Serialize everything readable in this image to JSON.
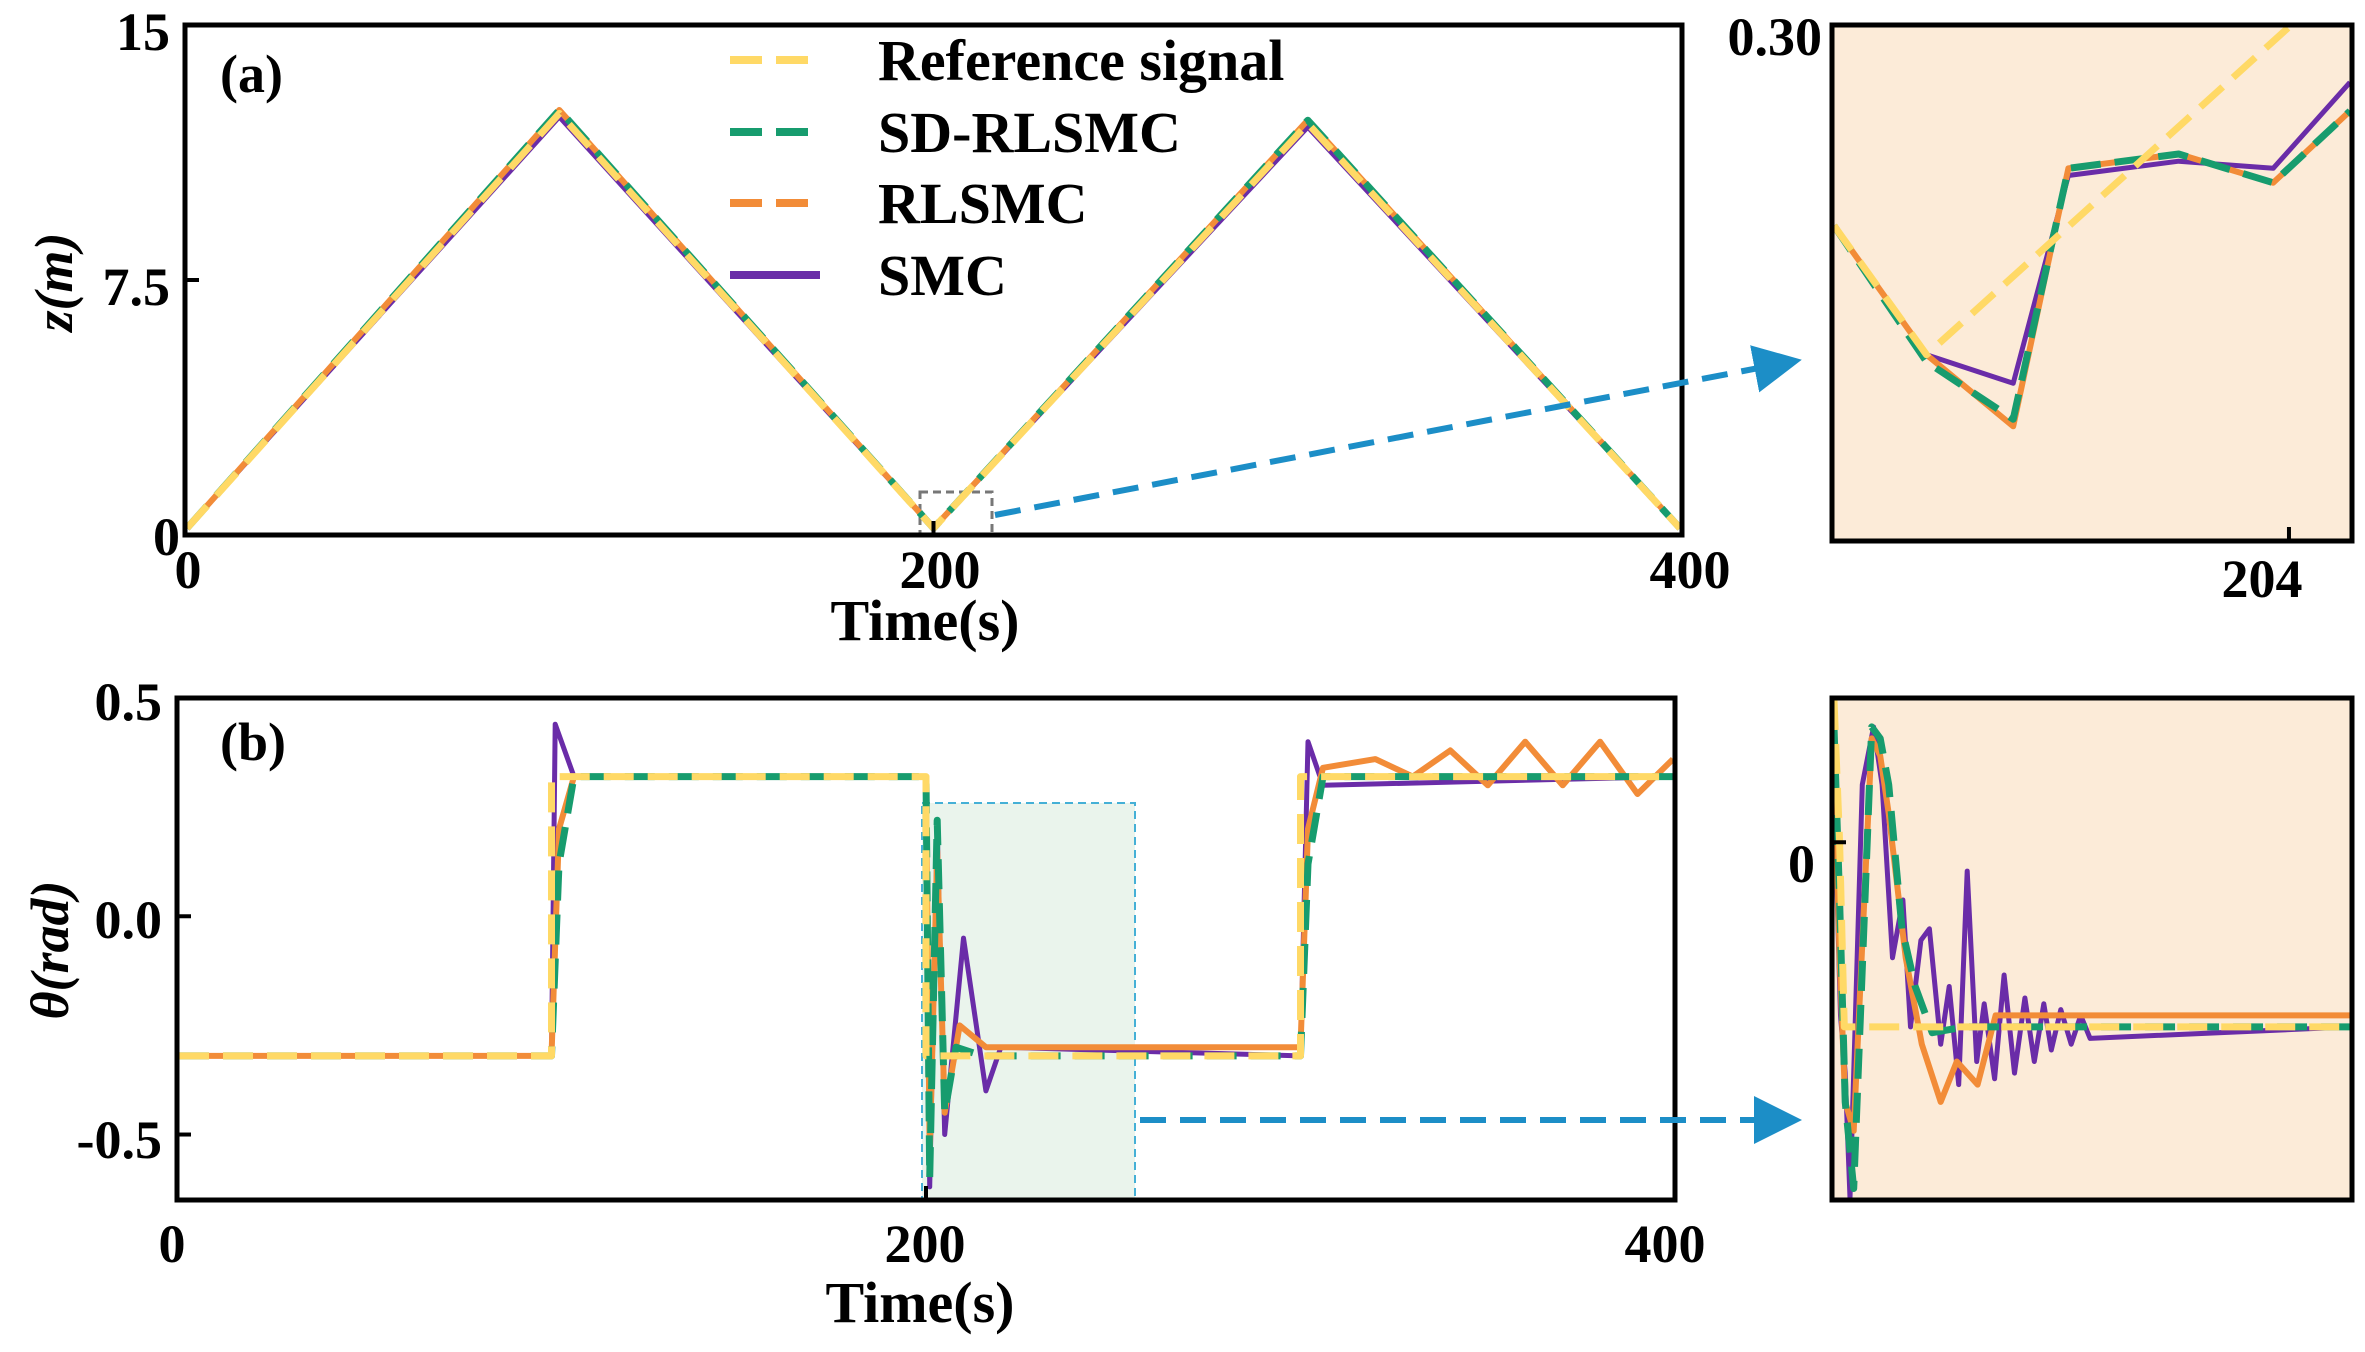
{
  "colors": {
    "reference": "#FFD966",
    "sd_rlsmc": "#179C6E",
    "rlsmc": "#F28C38",
    "smc": "#6A2CA8",
    "arrow": "#1C8EC7",
    "inset_bg": "#FCEBD8",
    "region_bg": "#EAF4EC",
    "region_border": "#45B0D6",
    "zoom_box_border": "#777777"
  },
  "legend": {
    "entries": [
      "Reference signal",
      "SD-RLSMC",
      "RLSMC",
      "SMC"
    ]
  },
  "chart_data": [
    {
      "id": "panel_a",
      "type": "line",
      "panel_label": "(a)",
      "title": "",
      "xlabel": "Time(s)",
      "ylabel": "z(m)",
      "xlim": [
        0,
        400
      ],
      "ylim": [
        0,
        15
      ],
      "xticks": [
        0,
        200,
        400
      ],
      "yticks": [
        0,
        7.5,
        15
      ],
      "xtick_labels": [
        "0",
        "200",
        "400"
      ],
      "ytick_labels": [
        "0",
        "7.5",
        "15"
      ],
      "series": [
        {
          "name": "Reference signal",
          "x": [
            0,
            100,
            200,
            300,
            400
          ],
          "y": [
            0.2,
            12.4,
            0.2,
            12.1,
            0.2
          ]
        },
        {
          "name": "SD-RLSMC",
          "x": [
            0,
            100,
            200,
            300,
            400
          ],
          "y": [
            0.2,
            12.5,
            0.2,
            12.2,
            0.2
          ]
        },
        {
          "name": "RLSMC",
          "x": [
            0,
            100,
            200,
            300,
            400
          ],
          "y": [
            0.2,
            12.5,
            0.2,
            12.2,
            0.2
          ]
        },
        {
          "name": "SMC",
          "x": [
            0,
            100,
            200,
            300,
            400
          ],
          "y": [
            0.2,
            12.3,
            0.2,
            12.0,
            0.2
          ]
        }
      ]
    },
    {
      "id": "inset_a",
      "type": "line",
      "title": "",
      "xlim": [
        201.1,
        204.4
      ],
      "ylim": [
        -0.06,
        0.3
      ],
      "xticks": [
        204
      ],
      "yticks": [
        0.3
      ],
      "xtick_labels": [
        "204"
      ],
      "ytick_labels": [
        "0.30"
      ],
      "series": [
        {
          "name": "Reference signal",
          "x": [
            201.1,
            201.7,
            204.0
          ],
          "y": [
            0.16,
            0.07,
            0.3
          ]
        },
        {
          "name": "SD-RLSMC",
          "x": [
            201.1,
            201.7,
            202.25,
            202.6,
            203.3,
            203.9,
            204.4
          ],
          "y": [
            0.16,
            0.065,
            0.025,
            0.2,
            0.21,
            0.19,
            0.24
          ]
        },
        {
          "name": "RLSMC",
          "x": [
            201.1,
            201.7,
            202.25,
            202.6,
            203.3,
            203.9,
            204.4
          ],
          "y": [
            0.16,
            0.07,
            0.02,
            0.2,
            0.21,
            0.19,
            0.24
          ]
        },
        {
          "name": "SMC",
          "x": [
            201.1,
            201.7,
            202.25,
            202.6,
            203.3,
            203.9,
            204.4
          ],
          "y": [
            0.16,
            0.07,
            0.05,
            0.195,
            0.205,
            0.2,
            0.26
          ]
        }
      ]
    },
    {
      "id": "panel_b",
      "type": "line",
      "panel_label": "(b)",
      "title": "",
      "xlabel": "Time(s)",
      "ylabel": "θ(rad)",
      "xlim": [
        0,
        400
      ],
      "ylim": [
        -0.65,
        0.5
      ],
      "xticks": [
        0,
        200,
        400
      ],
      "yticks": [
        -0.5,
        0.0,
        0.5
      ],
      "xtick_labels": [
        "0",
        "200",
        "400"
      ],
      "ytick_labels": [
        "-0.5",
        "0.0",
        "0.5"
      ],
      "series": [
        {
          "name": "Reference signal",
          "x": [
            0,
            100,
            100,
            200,
            200,
            300,
            300,
            400
          ],
          "y": [
            -0.32,
            -0.32,
            0.32,
            0.32,
            -0.32,
            -0.32,
            0.32,
            0.32
          ]
        },
        {
          "name": "SD-RLSMC",
          "x": [
            0,
            3,
            100,
            102,
            106,
            200,
            201,
            203,
            205,
            208,
            215,
            300,
            302,
            306,
            400
          ],
          "y": [
            -0.32,
            -0.32,
            -0.32,
            0.12,
            0.32,
            0.32,
            -0.6,
            0.22,
            -0.45,
            -0.3,
            -0.32,
            -0.32,
            0.12,
            0.32,
            0.32
          ]
        },
        {
          "name": "RLSMC",
          "x": [
            0,
            3,
            100,
            102,
            106,
            200,
            201,
            203,
            205,
            209,
            216,
            300,
            302,
            306,
            320,
            330,
            340,
            350,
            360,
            370,
            380,
            390,
            400
          ],
          "y": [
            -0.32,
            -0.32,
            -0.32,
            0.2,
            0.32,
            0.32,
            -0.55,
            0.15,
            -0.45,
            -0.25,
            -0.3,
            -0.3,
            0.2,
            0.34,
            0.36,
            0.32,
            0.38,
            0.3,
            0.4,
            0.3,
            0.4,
            0.28,
            0.36
          ]
        },
        {
          "name": "SMC",
          "x": [
            0,
            100,
            101,
            106,
            200,
            201,
            203,
            205,
            210,
            216,
            220,
            300,
            302,
            306,
            400
          ],
          "y": [
            -0.32,
            -0.32,
            0.44,
            0.32,
            0.32,
            -0.62,
            0.2,
            -0.5,
            -0.05,
            -0.4,
            -0.3,
            -0.32,
            0.4,
            0.3,
            0.32
          ]
        }
      ]
    },
    {
      "id": "inset_b",
      "type": "line",
      "title": "",
      "xlim": [
        200,
        255
      ],
      "ylim": [
        -0.62,
        0.25
      ],
      "xticks": [],
      "yticks": [
        0
      ],
      "xtick_labels": [],
      "ytick_labels": [
        "0"
      ],
      "series": [
        {
          "name": "Reference signal",
          "x": [
            200,
            200.8,
            201.3,
            205,
            215,
            255
          ],
          "y": [
            0.25,
            0.0,
            -0.32,
            -0.32,
            -0.32,
            -0.32
          ]
        },
        {
          "name": "SD-RLSMC",
          "x": [
            200,
            200.8,
            201.4,
            202.3,
            204.2,
            205.1,
            206,
            207.4,
            208.8,
            210.6,
            214,
            255
          ],
          "y": [
            0.2,
            -0.1,
            -0.45,
            -0.6,
            0.2,
            0.18,
            0.1,
            -0.15,
            -0.25,
            -0.33,
            -0.32,
            -0.32
          ]
        },
        {
          "name": "RLSMC",
          "x": [
            200,
            200.8,
            201.4,
            202.3,
            204.2,
            205.1,
            206,
            207.8,
            209.5,
            211.5,
            213.2,
            215.4,
            217.3,
            255
          ],
          "y": [
            0.15,
            -0.2,
            -0.45,
            -0.5,
            0.18,
            0.15,
            0.05,
            -0.2,
            -0.35,
            -0.45,
            -0.38,
            -0.42,
            -0.3,
            -0.3
          ]
        },
        {
          "name": "SMC",
          "x": [
            200,
            200.9,
            201.4,
            201.9,
            203.2,
            204.4,
            205.3,
            206.4,
            207.5,
            208.3,
            209.4,
            210.3,
            211.5,
            212.4,
            213.4,
            214.3,
            215.3,
            216.1,
            217.2,
            218.2,
            219.3,
            220.4,
            221.4,
            222.4,
            223.2,
            224.2,
            225.3,
            226.3,
            227.3,
            255
          ],
          "y": [
            0.1,
            -0.3,
            -0.4,
            -0.62,
            0.1,
            0.2,
            0.1,
            -0.2,
            -0.1,
            -0.32,
            -0.17,
            -0.15,
            -0.35,
            -0.25,
            -0.42,
            -0.05,
            -0.38,
            -0.28,
            -0.41,
            -0.23,
            -0.4,
            -0.27,
            -0.38,
            -0.28,
            -0.36,
            -0.29,
            -0.35,
            -0.3,
            -0.34,
            -0.32
          ]
        }
      ]
    }
  ]
}
